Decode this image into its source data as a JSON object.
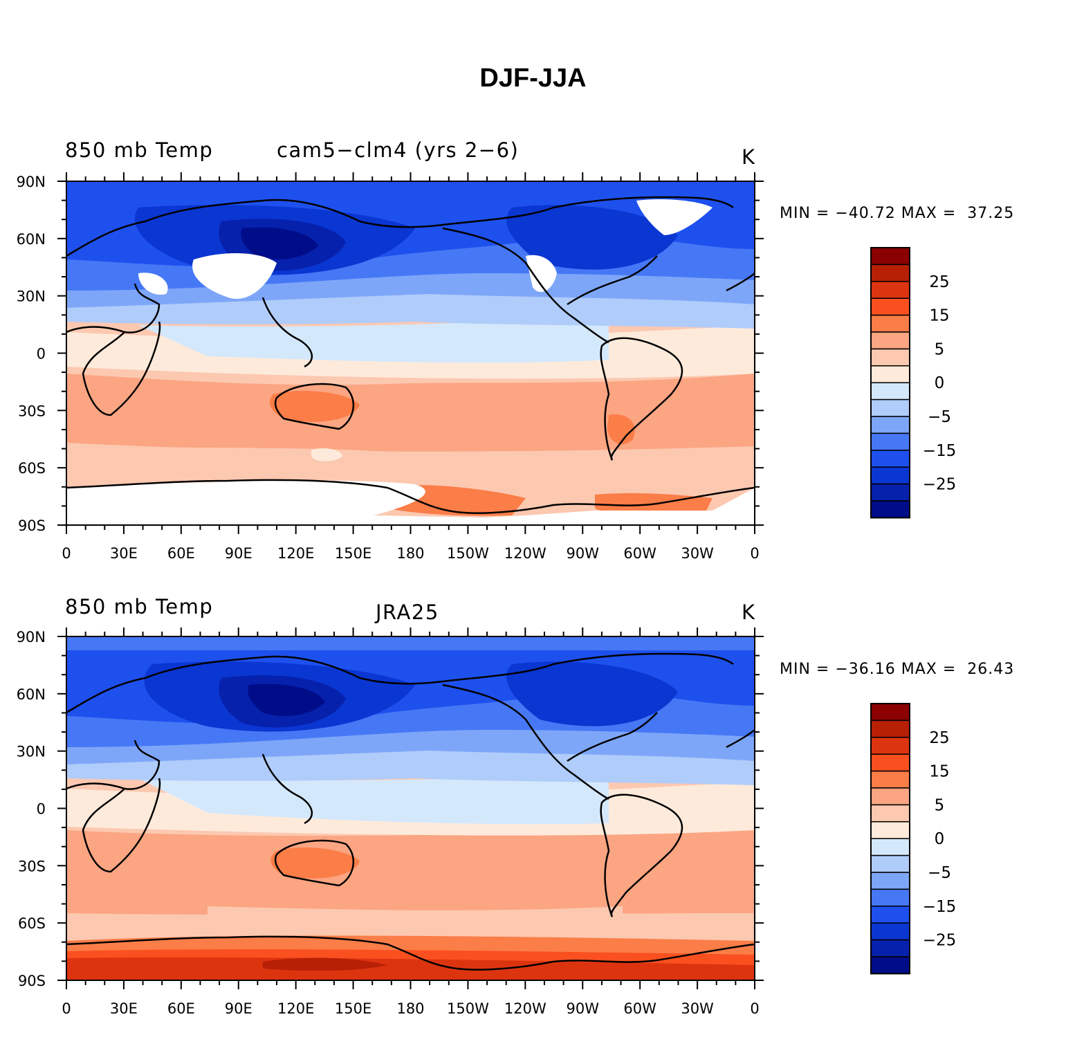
{
  "title": "DJF-JJA",
  "panels": [
    {
      "left_label": "850 mb Temp",
      "center_label": "cam5−clm4 (yrs 2−6)",
      "right_label": "K",
      "stats": "MIN = −40.72 MAX =  37.25",
      "stats_values": {
        "min": -40.72,
        "max": 37.25
      }
    },
    {
      "left_label": "850 mb Temp",
      "center_label": "JRA25",
      "right_label": "K",
      "stats": "MIN = −36.16 MAX =  26.43",
      "stats_values": {
        "min": -36.16,
        "max": 26.43
      }
    }
  ],
  "y_ticks": [
    "90N",
    "60N",
    "30N",
    "0",
    "30S",
    "60S",
    "90S"
  ],
  "x_ticks": [
    "0",
    "30E",
    "60E",
    "90E",
    "120E",
    "150E",
    "180",
    "150W",
    "120W",
    "90W",
    "60W",
    "30W",
    "0"
  ],
  "colorbar": {
    "labels": [
      "25",
      "15",
      "5",
      "0",
      "−5",
      "−15",
      "−25"
    ],
    "colors": [
      "#8b0000",
      "#b82006",
      "#dd3410",
      "#fa5020",
      "#fb7d48",
      "#fba582",
      "#fcc8b0",
      "#feeadb",
      "#d4e8fc",
      "#b0ccfa",
      "#7ea6f8",
      "#4678f6",
      "#1e50ee",
      "#0a36d2",
      "#0621ac",
      "#000d88"
    ]
  }
}
